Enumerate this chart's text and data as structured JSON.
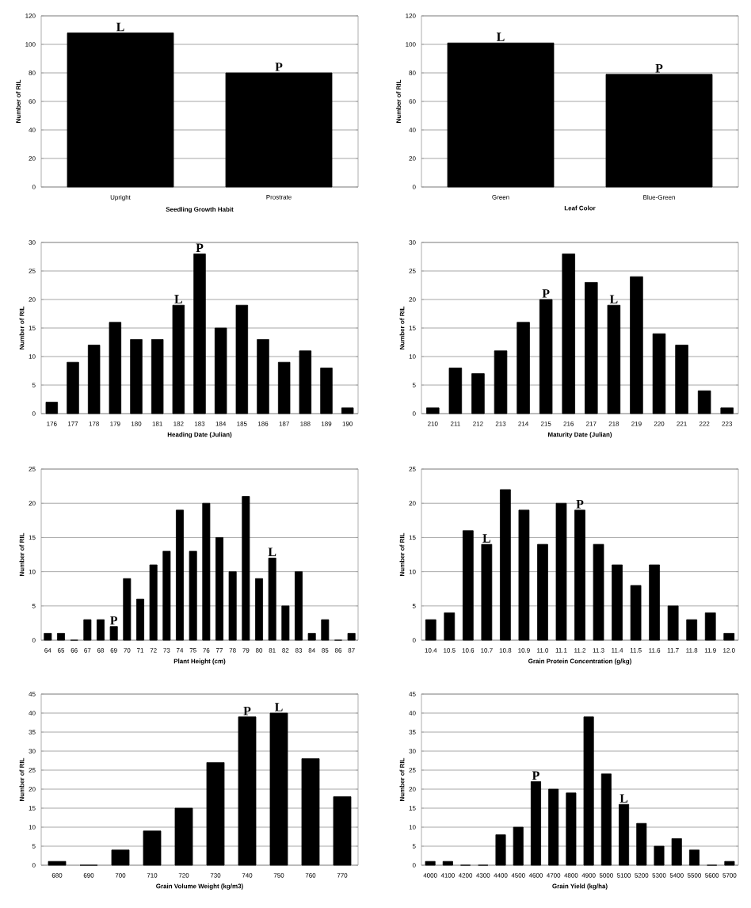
{
  "chart_data": [
    {
      "type": "bar",
      "categories": [
        "Upright",
        "Prostrate"
      ],
      "values": [
        108,
        80
      ],
      "color": "#000000",
      "xlabel": "Seedling Growth Habit",
      "ylabel": "Number of RIL",
      "ylim": [
        0,
        120
      ],
      "yticks": [
        0,
        20,
        40,
        60,
        80,
        100,
        120
      ],
      "grid": "y",
      "annotations": [
        {
          "text": "L",
          "x": "Upright",
          "y": 108
        },
        {
          "text": "P",
          "x": "Prostrate",
          "y": 80
        }
      ]
    },
    {
      "type": "bar",
      "categories": [
        "Green",
        "Blue-Green"
      ],
      "values": [
        101,
        79
      ],
      "color": "#000000",
      "xlabel": "Leaf Color",
      "ylabel": "Number of RIL",
      "ylim": [
        0,
        120
      ],
      "yticks": [
        0,
        20,
        40,
        60,
        80,
        100,
        120
      ],
      "grid": "y",
      "annotations": [
        {
          "text": "L",
          "x": "Green",
          "y": 101
        },
        {
          "text": "P",
          "x": "Blue-Green",
          "y": 79
        }
      ]
    },
    {
      "type": "bar",
      "categories": [
        "176",
        "177",
        "178",
        "179",
        "180",
        "181",
        "182",
        "183",
        "184",
        "185",
        "186",
        "187",
        "188",
        "189",
        "190"
      ],
      "values": [
        2,
        9,
        12,
        16,
        13,
        13,
        19,
        28,
        15,
        19,
        13,
        9,
        11,
        8,
        1
      ],
      "color": "#000000",
      "xlabel": "Heading Date (Julian)",
      "ylabel": "Number of RIL",
      "ylim": [
        0,
        30
      ],
      "yticks": [
        0,
        5,
        10,
        15,
        20,
        25,
        30
      ],
      "grid": "y",
      "annotations": [
        {
          "text": "L",
          "x": "182",
          "y": 19
        },
        {
          "text": "P",
          "x": "183",
          "y": 28
        }
      ]
    },
    {
      "type": "bar",
      "categories": [
        "210",
        "211",
        "212",
        "213",
        "214",
        "215",
        "216",
        "217",
        "218",
        "219",
        "220",
        "221",
        "222",
        "223"
      ],
      "values": [
        1,
        8,
        7,
        11,
        16,
        20,
        28,
        23,
        19,
        24,
        14,
        12,
        4,
        1
      ],
      "color": "#000000",
      "xlabel": "Maturity Date (Julian)",
      "ylabel": "Number of RIL",
      "ylim": [
        0,
        30
      ],
      "yticks": [
        0,
        5,
        10,
        15,
        20,
        25,
        30
      ],
      "grid": "y",
      "annotations": [
        {
          "text": "P",
          "x": "215",
          "y": 20
        },
        {
          "text": "L",
          "x": "218",
          "y": 19
        }
      ]
    },
    {
      "type": "bar",
      "categories": [
        "64",
        "65",
        "66",
        "67",
        "68",
        "69",
        "70",
        "71",
        "72",
        "73",
        "74",
        "75",
        "76",
        "77",
        "78",
        "79",
        "80",
        "81",
        "82",
        "83",
        "84",
        "85",
        "86",
        "87"
      ],
      "values": [
        1,
        1,
        0,
        3,
        3,
        2,
        9,
        6,
        11,
        13,
        19,
        13,
        20,
        15,
        10,
        21,
        9,
        12,
        5,
        10,
        1,
        3,
        0,
        1
      ],
      "color": "#000000",
      "xlabel": "Plant Height (cm)",
      "ylabel": "Number of RIL",
      "ylim": [
        0,
        25
      ],
      "yticks": [
        0,
        5,
        10,
        15,
        20,
        25
      ],
      "grid": "y",
      "annotations": [
        {
          "text": "P",
          "x": "69",
          "y": 2
        },
        {
          "text": "L",
          "x": "81",
          "y": 12
        }
      ]
    },
    {
      "type": "bar",
      "categories": [
        "10.4",
        "10.5",
        "10.6",
        "10.7",
        "10.8",
        "10.9",
        "11.0",
        "11.1",
        "11.2",
        "11.3",
        "11.4",
        "11.5",
        "11.6",
        "11.7",
        "11.8",
        "11.9",
        "12.0"
      ],
      "values": [
        3,
        4,
        16,
        14,
        22,
        19,
        14,
        20,
        19,
        14,
        11,
        8,
        11,
        5,
        3,
        4,
        1
      ],
      "color": "#000000",
      "xlabel": "Grain Protein Concentration (g/kg)",
      "ylabel": "Number of RIL",
      "ylim": [
        0,
        25
      ],
      "yticks": [
        0,
        5,
        10,
        15,
        20,
        25
      ],
      "grid": "y",
      "annotations": [
        {
          "text": "L",
          "x": "10.7",
          "y": 14
        },
        {
          "text": "P",
          "x": "11.2",
          "y": 19
        }
      ]
    },
    {
      "type": "bar",
      "categories": [
        "680",
        "690",
        "700",
        "710",
        "720",
        "730",
        "740",
        "750",
        "760",
        "770"
      ],
      "values": [
        1,
        0,
        4,
        9,
        15,
        27,
        39,
        40,
        28,
        18
      ],
      "color": "#000000",
      "xlabel": "Grain Volume Weight (kg/m3)",
      "ylabel": "Number of RIL",
      "ylim": [
        0,
        45
      ],
      "yticks": [
        0,
        5,
        10,
        15,
        20,
        25,
        30,
        35,
        40,
        45
      ],
      "grid": "y",
      "annotations": [
        {
          "text": "P",
          "x": "740",
          "y": 39
        },
        {
          "text": "L",
          "x": "750",
          "y": 40
        }
      ]
    },
    {
      "type": "bar",
      "categories": [
        "4000",
        "4100",
        "4200",
        "4300",
        "4400",
        "4500",
        "4600",
        "4700",
        "4800",
        "4900",
        "5000",
        "5100",
        "5200",
        "5300",
        "5400",
        "5500",
        "5600",
        "5700"
      ],
      "values": [
        1,
        1,
        0,
        0,
        8,
        10,
        22,
        20,
        19,
        39,
        24,
        16,
        11,
        5,
        7,
        4,
        0,
        1
      ],
      "color": "#000000",
      "xlabel": "Grain Yield (kg/ha)",
      "ylabel": "Number of RIL",
      "ylim": [
        0,
        45
      ],
      "yticks": [
        0,
        5,
        10,
        15,
        20,
        25,
        30,
        35,
        40,
        45
      ],
      "grid": "y",
      "annotations": [
        {
          "text": "P",
          "x": "4600",
          "y": 22
        },
        {
          "text": "L",
          "x": "5100",
          "y": 16
        }
      ]
    }
  ]
}
